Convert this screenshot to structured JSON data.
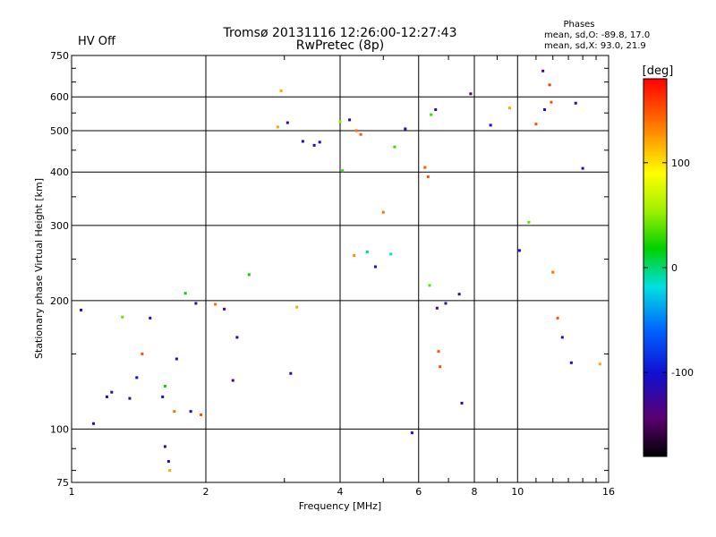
{
  "header": {
    "title_line1": "Tromsø 20131116 12:26:00-12:27:43",
    "title_line2": "RwPretec (8p)",
    "hv_status": "HV Off",
    "hv_color": "#cc0000",
    "phases_heading": "Phases",
    "phases_o": "mean, sd,O: -89.8, 17.0",
    "phases_x": "mean, sd,X:  93.0, 21.9"
  },
  "chart_data": {
    "type": "scatter",
    "xlabel": "Frequency [MHz]",
    "ylabel": "Stationary phase Virtual Height [km]",
    "x_scale": "log",
    "y_scale": "log",
    "xlim": [
      1,
      16
    ],
    "ylim": [
      75,
      750
    ],
    "x_ticks": [
      1,
      2,
      4,
      6,
      8,
      10,
      16
    ],
    "x_tick_labels": [
      "1",
      "2",
      "4",
      "6",
      "8",
      "10",
      "16"
    ],
    "y_ticks": [
      75,
      100,
      200,
      300,
      400,
      500,
      600,
      750
    ],
    "y_tick_labels": [
      "75",
      "100",
      "200",
      "300",
      "400",
      "500",
      "600",
      "750"
    ],
    "grid": true,
    "colorbar": {
      "label": "[deg]",
      "range": [
        -180,
        180
      ],
      "ticks": [
        -100,
        0,
        100
      ],
      "tick_labels": [
        "-100",
        "0",
        "100"
      ],
      "colormap": "rainbow (black-purple-blue-cyan-green-yellow-orange-red)"
    },
    "series": [
      {
        "points": [
          [
            1.05,
            190,
            -110
          ],
          [
            1.12,
            103,
            -110
          ],
          [
            1.2,
            119,
            -105
          ],
          [
            1.23,
            122,
            -110
          ],
          [
            1.3,
            183,
            40
          ],
          [
            1.35,
            118,
            -120
          ],
          [
            1.4,
            132,
            -100
          ],
          [
            1.44,
            150,
            150
          ],
          [
            1.5,
            182,
            -110
          ],
          [
            1.6,
            119,
            -100
          ],
          [
            1.62,
            91,
            -110
          ],
          [
            1.62,
            126,
            20
          ],
          [
            1.65,
            84,
            -110
          ],
          [
            1.66,
            80,
            120
          ],
          [
            1.7,
            110,
            140
          ],
          [
            1.72,
            146,
            -110
          ],
          [
            1.8,
            208,
            20
          ],
          [
            1.85,
            110,
            -110
          ],
          [
            1.9,
            197,
            -110
          ],
          [
            1.95,
            108,
            150
          ],
          [
            2.1,
            196,
            140
          ],
          [
            2.2,
            191,
            -130
          ],
          [
            2.3,
            130,
            -130
          ],
          [
            2.35,
            164,
            -110
          ],
          [
            2.5,
            230,
            20
          ],
          [
            2.9,
            510,
            120
          ],
          [
            2.95,
            620,
            120
          ],
          [
            3.05,
            522,
            -120
          ],
          [
            3.1,
            135,
            -110
          ],
          [
            3.2,
            193,
            120
          ],
          [
            3.3,
            472,
            -110
          ],
          [
            3.5,
            462,
            -110
          ],
          [
            3.6,
            470,
            -110
          ],
          [
            4.0,
            525,
            50
          ],
          [
            4.05,
            403,
            30
          ],
          [
            4.2,
            530,
            -110
          ],
          [
            4.3,
            255,
            130
          ],
          [
            4.35,
            500,
            140
          ],
          [
            4.45,
            490,
            150
          ],
          [
            4.6,
            260,
            0
          ],
          [
            4.8,
            240,
            -100
          ],
          [
            5.0,
            322,
            140
          ],
          [
            5.2,
            257,
            -20
          ],
          [
            5.3,
            458,
            30
          ],
          [
            5.6,
            505,
            -120
          ],
          [
            5.8,
            98,
            -110
          ],
          [
            6.2,
            410,
            150
          ],
          [
            6.3,
            390,
            150
          ],
          [
            6.35,
            217,
            40
          ],
          [
            6.4,
            545,
            30
          ],
          [
            6.55,
            560,
            -110
          ],
          [
            6.6,
            192,
            -130
          ],
          [
            6.65,
            152,
            150
          ],
          [
            6.7,
            140,
            150
          ],
          [
            6.9,
            197,
            -120
          ],
          [
            7.4,
            207,
            -120
          ],
          [
            7.5,
            115,
            -110
          ],
          [
            7.85,
            610,
            -150
          ],
          [
            8.7,
            515,
            -110
          ],
          [
            9.6,
            565,
            120
          ],
          [
            10.1,
            262,
            -110
          ],
          [
            10.6,
            305,
            40
          ],
          [
            11.0,
            518,
            150
          ],
          [
            11.4,
            690,
            -140
          ],
          [
            11.5,
            560,
            -110
          ],
          [
            11.8,
            640,
            160
          ],
          [
            11.9,
            583,
            150
          ],
          [
            12.0,
            233,
            140
          ],
          [
            12.3,
            182,
            150
          ],
          [
            12.6,
            164,
            -110
          ],
          [
            13.2,
            143,
            -110
          ],
          [
            13.5,
            580,
            -110
          ],
          [
            14.0,
            408,
            -110
          ],
          [
            15.3,
            142,
            120
          ]
        ]
      }
    ]
  }
}
